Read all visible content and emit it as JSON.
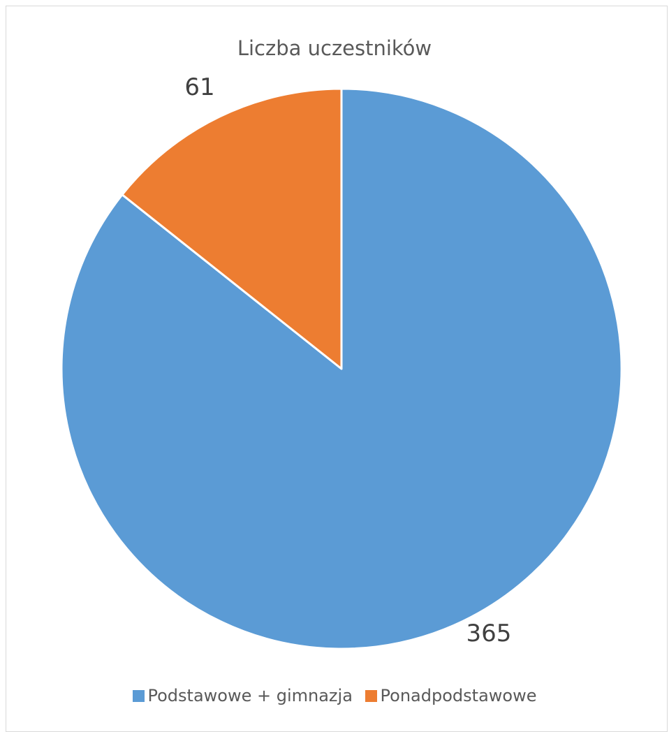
{
  "chart_data": {
    "type": "pie",
    "title": "Liczba uczestników",
    "categories": [
      "Podstawowe + gimnazja",
      "Ponadpodstawowe"
    ],
    "values": [
      365,
      61
    ],
    "colors": [
      "#5b9bd5",
      "#ed7d31"
    ],
    "data_labels": [
      "365",
      "61"
    ],
    "legend_position": "bottom"
  }
}
